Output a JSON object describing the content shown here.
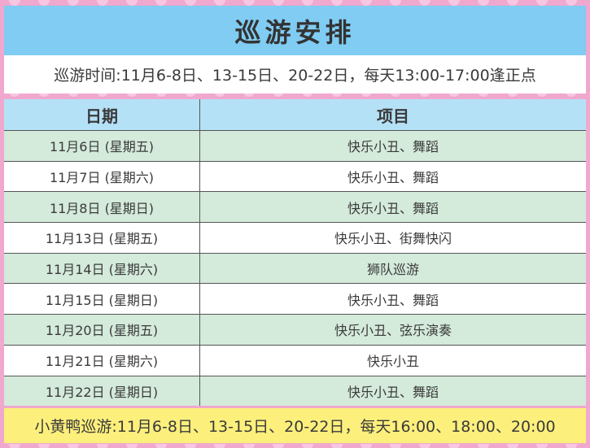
{
  "title": "巡游安排",
  "subtitle": "巡游时间:11月6-8日、13-15日、20-22日，每天13:00-17:00逢正点",
  "table": {
    "headers": [
      "日期",
      "项目"
    ],
    "rows": [
      [
        "11月6日 (星期五)",
        "快乐小丑、舞蹈"
      ],
      [
        "11月7日 (星期六)",
        "快乐小丑、舞蹈"
      ],
      [
        "11月8日 (星期日)",
        "快乐小丑、舞蹈"
      ],
      [
        "11月13日 (星期五)",
        "快乐小丑、街舞快闪"
      ],
      [
        "11月14日 (星期六)",
        "狮队巡游"
      ],
      [
        "11月15日 (星期日)",
        "快乐小丑、舞蹈"
      ],
      [
        "11月20日 (星期五)",
        "快乐小丑、弦乐演奏"
      ],
      [
        "11月21日 (星期六)",
        "快乐小丑"
      ],
      [
        "11月22日 (星期日)",
        "快乐小丑、舞蹈"
      ]
    ]
  },
  "footer": "小黄鸭巡游:11月6-8日、13-15日、20-22日，每天16:00、18:00、20:00",
  "colors": {
    "title_bg": "#80ccf3",
    "header_bg": "#b5e1f7",
    "row_green": "#d4eadb",
    "footer_bg": "#fcef7c",
    "background": "#f0a8cf"
  }
}
